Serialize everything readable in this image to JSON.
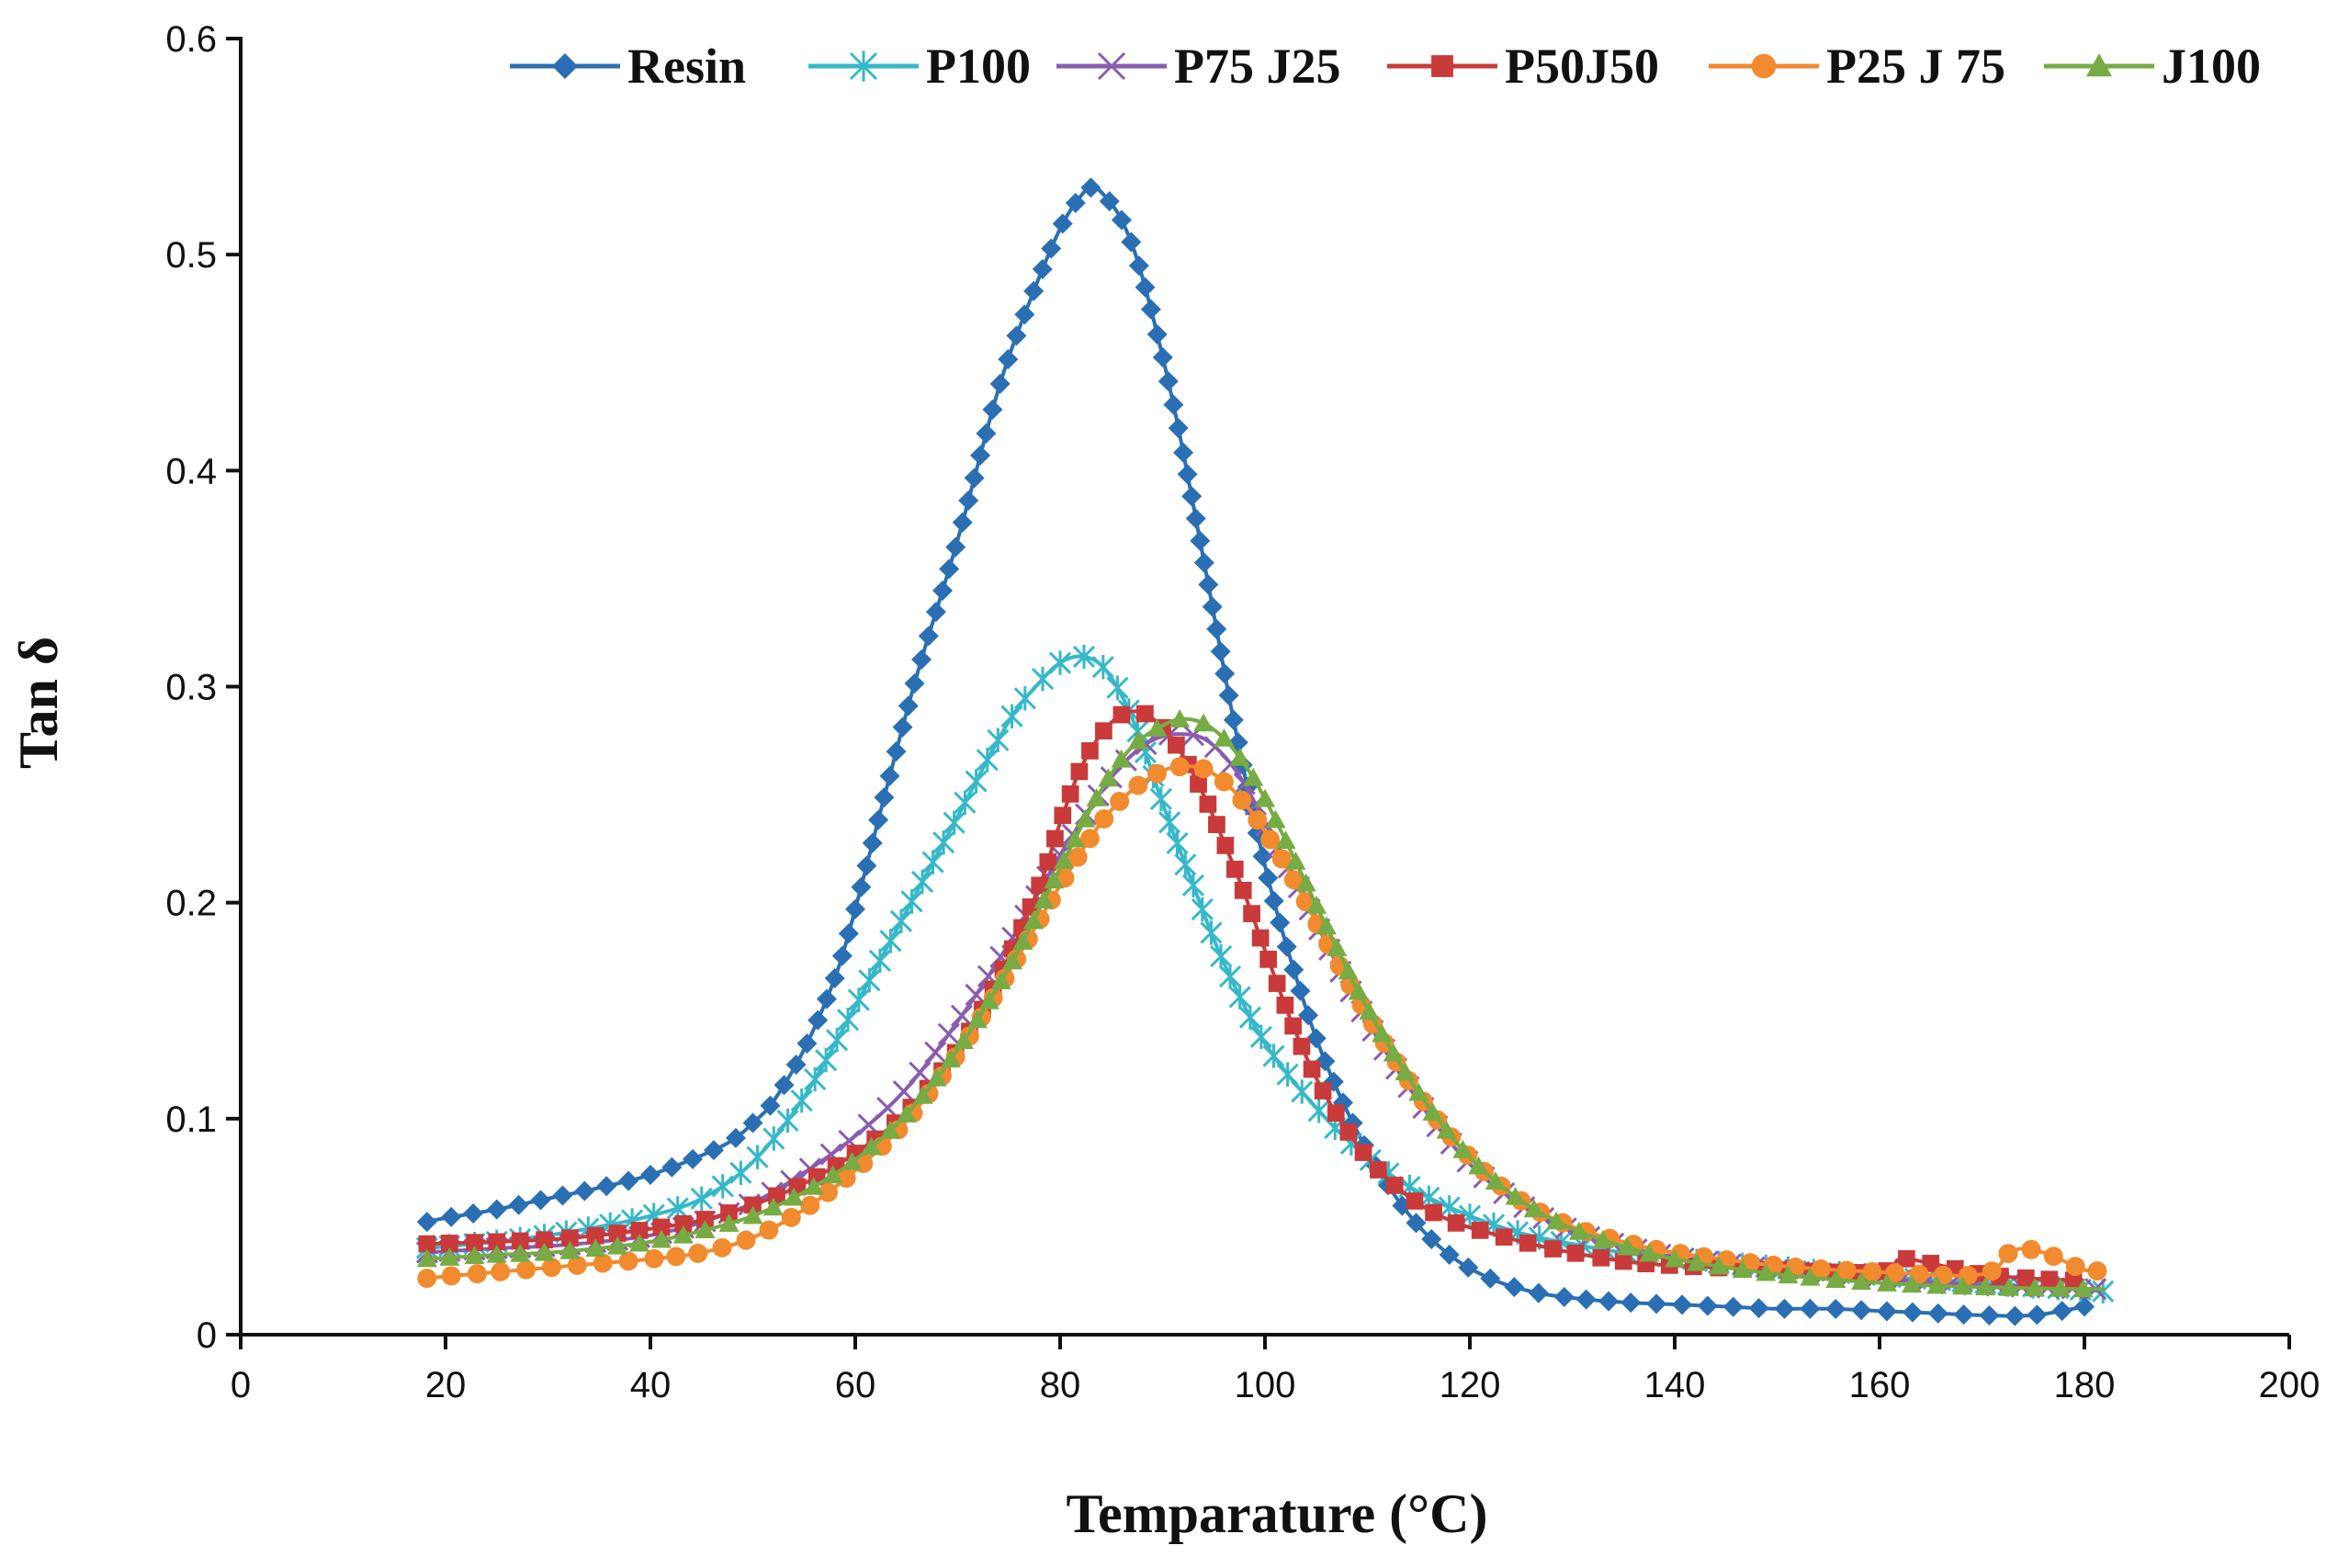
{
  "chart_data": {
    "type": "line",
    "title": "",
    "xlabel": "Temparature (°C)",
    "ylabel": "Tan δ",
    "xlim": [
      0,
      200
    ],
    "ylim": [
      0,
      0.6
    ],
    "x_ticks": [
      0,
      20,
      40,
      60,
      80,
      100,
      120,
      140,
      160,
      180,
      200
    ],
    "y_ticks": [
      0,
      0.1,
      0.2,
      0.3,
      0.4,
      0.5,
      0.6
    ],
    "x_tick_labels": [
      "0",
      "20",
      "40",
      "60",
      "80",
      "100",
      "120",
      "140",
      "160",
      "180",
      "200"
    ],
    "y_tick_labels": [
      "0",
      "0.1",
      "0.2",
      "0.3",
      "0.4",
      "0.5",
      "0.6"
    ],
    "grid": false,
    "legend_position": "top",
    "series": [
      {
        "name": "Resin",
        "color": "#2a6fb3",
        "marker": "diamond",
        "x": [
          18,
          20,
          25,
          30,
          35,
          40,
          45,
          48,
          50,
          52,
          55,
          58,
          60,
          63,
          66,
          70,
          74,
          77,
          80,
          82,
          83,
          84,
          86,
          88,
          91,
          94,
          97,
          100,
          103,
          106,
          110,
          114,
          118,
          122,
          126,
          130,
          135,
          140,
          145,
          150,
          155,
          160,
          165,
          170,
          175,
          180
        ],
        "y": [
          0.052,
          0.054,
          0.058,
          0.063,
          0.068,
          0.074,
          0.083,
          0.09,
          0.098,
          0.108,
          0.132,
          0.165,
          0.197,
          0.252,
          0.305,
          0.368,
          0.438,
          0.478,
          0.512,
          0.527,
          0.531,
          0.529,
          0.516,
          0.49,
          0.432,
          0.359,
          0.283,
          0.217,
          0.166,
          0.125,
          0.085,
          0.056,
          0.037,
          0.026,
          0.02,
          0.017,
          0.015,
          0.014,
          0.013,
          0.012,
          0.012,
          0.011,
          0.01,
          0.009,
          0.009,
          0.013
        ]
      },
      {
        "name": "P100",
        "color": "#37b8c9",
        "marker": "asterisk",
        "x": [
          18,
          25,
          30,
          35,
          40,
          45,
          50,
          55,
          60,
          65,
          70,
          75,
          78,
          80,
          82,
          84,
          86,
          88,
          90,
          93,
          96,
          100,
          105,
          110,
          115,
          120,
          125,
          130,
          135,
          140,
          150,
          160,
          170,
          182
        ],
        "y": [
          0.04,
          0.043,
          0.046,
          0.05,
          0.055,
          0.063,
          0.08,
          0.11,
          0.152,
          0.196,
          0.24,
          0.284,
          0.302,
          0.311,
          0.314,
          0.31,
          0.296,
          0.274,
          0.246,
          0.208,
          0.172,
          0.135,
          0.105,
          0.082,
          0.066,
          0.055,
          0.047,
          0.042,
          0.038,
          0.035,
          0.031,
          0.027,
          0.024,
          0.02
        ]
      },
      {
        "name": "P75 J25",
        "color": "#8a5cb0",
        "marker": "cross",
        "x": [
          18,
          25,
          30,
          35,
          40,
          45,
          50,
          55,
          60,
          65,
          70,
          75,
          80,
          85,
          88,
          90,
          92,
          94,
          96,
          98,
          100,
          103,
          106,
          110,
          115,
          120,
          125,
          130,
          135,
          140,
          150,
          160,
          170,
          182
        ],
        "y": [
          0.038,
          0.04,
          0.041,
          0.043,
          0.046,
          0.052,
          0.061,
          0.075,
          0.092,
          0.114,
          0.145,
          0.181,
          0.222,
          0.258,
          0.272,
          0.277,
          0.278,
          0.276,
          0.268,
          0.255,
          0.237,
          0.21,
          0.181,
          0.145,
          0.108,
          0.079,
          0.06,
          0.048,
          0.041,
          0.036,
          0.03,
          0.026,
          0.023,
          0.021
        ]
      },
      {
        "name": "P50J50",
        "color": "#c93a3a",
        "marker": "square",
        "x": [
          18,
          25,
          30,
          35,
          40,
          45,
          50,
          55,
          60,
          65,
          70,
          74,
          78,
          80,
          82,
          84,
          86,
          88,
          90,
          92,
          94,
          96,
          98,
          100,
          103,
          106,
          110,
          114,
          118,
          122,
          126,
          130,
          135,
          140,
          150,
          160,
          162,
          165,
          170,
          175,
          180
        ],
        "y": [
          0.042,
          0.043,
          0.044,
          0.046,
          0.049,
          0.053,
          0.06,
          0.07,
          0.084,
          0.103,
          0.132,
          0.165,
          0.208,
          0.237,
          0.262,
          0.278,
          0.287,
          0.288,
          0.281,
          0.268,
          0.25,
          0.228,
          0.204,
          0.178,
          0.14,
          0.11,
          0.082,
          0.064,
          0.053,
          0.047,
          0.042,
          0.038,
          0.034,
          0.032,
          0.03,
          0.029,
          0.035,
          0.033,
          0.028,
          0.026,
          0.025
        ]
      },
      {
        "name": "P25 J 75",
        "color": "#f28a2e",
        "marker": "circle",
        "x": [
          18,
          20,
          25,
          30,
          35,
          40,
          45,
          50,
          55,
          60,
          65,
          70,
          75,
          80,
          84,
          87,
          90,
          92,
          94,
          96,
          98,
          100,
          103,
          106,
          110,
          115,
          120,
          125,
          130,
          135,
          140,
          150,
          160,
          170,
          173,
          176,
          180,
          182
        ],
        "y": [
          0.026,
          0.027,
          0.029,
          0.031,
          0.033,
          0.035,
          0.038,
          0.045,
          0.058,
          0.076,
          0.099,
          0.13,
          0.168,
          0.208,
          0.237,
          0.252,
          0.261,
          0.263,
          0.262,
          0.256,
          0.246,
          0.233,
          0.209,
          0.182,
          0.148,
          0.111,
          0.082,
          0.062,
          0.05,
          0.043,
          0.038,
          0.032,
          0.029,
          0.028,
          0.039,
          0.038,
          0.03,
          0.03
        ]
      },
      {
        "name": "J100",
        "color": "#77ab43",
        "marker": "triangle",
        "x": [
          18,
          25,
          30,
          35,
          40,
          45,
          50,
          55,
          60,
          65,
          70,
          75,
          80,
          84,
          87,
          90,
          92,
          94,
          96,
          98,
          100,
          103,
          106,
          110,
          115,
          120,
          125,
          130,
          135,
          140,
          150,
          160,
          170,
          182
        ],
        "y": [
          0.035,
          0.037,
          0.038,
          0.04,
          0.043,
          0.048,
          0.055,
          0.066,
          0.081,
          0.102,
          0.132,
          0.17,
          0.216,
          0.252,
          0.272,
          0.282,
          0.285,
          0.283,
          0.276,
          0.264,
          0.248,
          0.219,
          0.189,
          0.151,
          0.112,
          0.082,
          0.062,
          0.049,
          0.041,
          0.035,
          0.028,
          0.024,
          0.022,
          0.021
        ]
      }
    ]
  }
}
